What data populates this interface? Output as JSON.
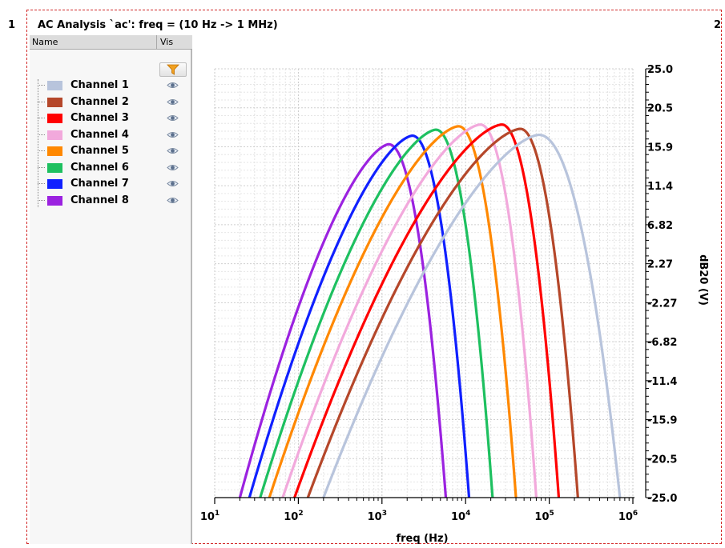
{
  "gutter": {
    "left_index": "1",
    "right_index": "2"
  },
  "window": {
    "title": "AC Analysis `ac': freq = (10 Hz -> 1 MHz)"
  },
  "legend_panel": {
    "col_name": "Name",
    "col_vis": "Vis",
    "filter_icon": "funnel-filter-icon",
    "visibility_icon": "eye-icon"
  },
  "chart_data": {
    "type": "line",
    "title": "AC Analysis `ac': freq = (10 Hz -> 1 MHz)",
    "xlabel": "freq (Hz)",
    "ylabel": "dB20 (V)",
    "xscale": "log",
    "xlim": [
      10,
      1000000
    ],
    "ylim": [
      -25,
      25
    ],
    "x_ticks": [
      {
        "base": "10",
        "exp": "1",
        "value": 10
      },
      {
        "base": "10",
        "exp": "2",
        "value": 100
      },
      {
        "base": "10",
        "exp": "3",
        "value": 1000
      },
      {
        "base": "10",
        "exp": "4",
        "value": 10000
      },
      {
        "base": "10",
        "exp": "5",
        "value": 100000
      },
      {
        "base": "10",
        "exp": "6",
        "value": 1000000
      }
    ],
    "y_ticks": [
      "25.0",
      "20.5",
      "15.9",
      "11.4",
      "6.82",
      "2.27",
      "-2.27",
      "-6.82",
      "-11.4",
      "-15.9",
      "-20.5",
      "-25.0"
    ],
    "y_axis_side": "right",
    "grid": true,
    "legend_placement": "left panel",
    "series": [
      {
        "name": "Channel 1",
        "color": "#b8c4dc",
        "peak_freq": 75000,
        "peak_db": 17.3,
        "low_edge": 200,
        "high_edge": 700000
      },
      {
        "name": "Channel 2",
        "color": "#b5472a",
        "peak_freq": 45000,
        "peak_db": 18.0,
        "low_edge": 130,
        "high_edge": 220000
      },
      {
        "name": "Channel 3",
        "color": "#ff0000",
        "peak_freq": 27000,
        "peak_db": 18.5,
        "low_edge": 90,
        "high_edge": 130000
      },
      {
        "name": "Channel 4",
        "color": "#f2a9dc",
        "peak_freq": 15000,
        "peak_db": 18.5,
        "low_edge": 65,
        "high_edge": 70000
      },
      {
        "name": "Channel 5",
        "color": "#ff8800",
        "peak_freq": 8200,
        "peak_db": 18.3,
        "low_edge": 45,
        "high_edge": 40000
      },
      {
        "name": "Channel 6",
        "color": "#1ec060",
        "peak_freq": 4400,
        "peak_db": 17.9,
        "low_edge": 35,
        "high_edge": 21000
      },
      {
        "name": "Channel 7",
        "color": "#1020ff",
        "peak_freq": 2300,
        "peak_db": 17.2,
        "low_edge": 26,
        "high_edge": 11000
      },
      {
        "name": "Channel 8",
        "color": "#9b22e0",
        "peak_freq": 1200,
        "peak_db": 16.2,
        "low_edge": 20,
        "high_edge": 5800
      }
    ]
  }
}
